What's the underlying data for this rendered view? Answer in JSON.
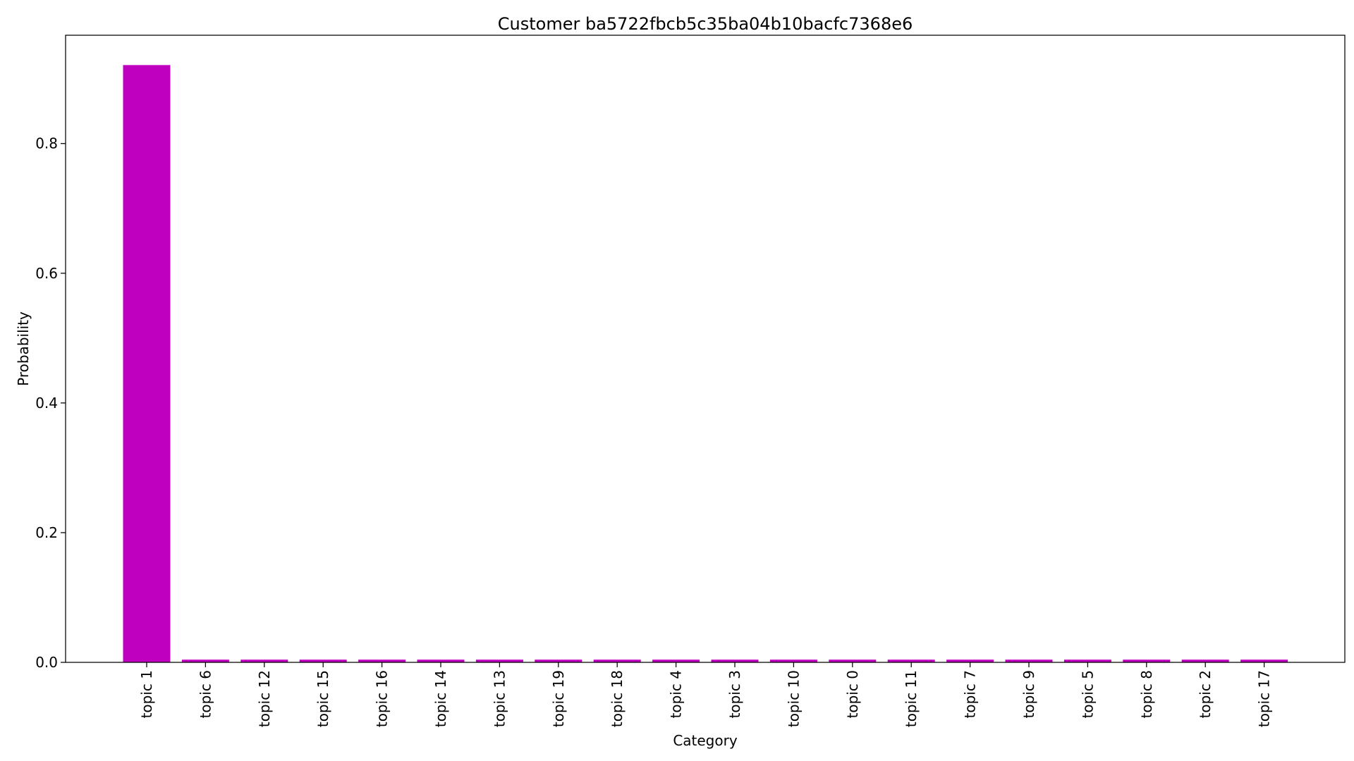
{
  "chart_data": {
    "type": "bar",
    "title": "Customer ba5722fbcb5c35ba04b10bacfc7368e6",
    "xlabel": "Category",
    "ylabel": "Probability",
    "categories": [
      "topic 1",
      "topic 6",
      "topic 12",
      "topic 15",
      "topic 16",
      "topic 14",
      "topic 13",
      "topic 19",
      "topic 18",
      "topic 4",
      "topic 3",
      "topic 10",
      "topic 0",
      "topic 11",
      "topic 7",
      "topic 9",
      "topic 5",
      "topic 8",
      "topic 2",
      "topic 17"
    ],
    "values": [
      0.921,
      0.0042,
      0.0042,
      0.0042,
      0.0042,
      0.0042,
      0.0042,
      0.0042,
      0.0042,
      0.0042,
      0.0042,
      0.0042,
      0.0042,
      0.0042,
      0.0042,
      0.0042,
      0.0042,
      0.0042,
      0.0042,
      0.0042
    ],
    "ylim": [
      0,
      0.967
    ],
    "yticks": [
      0.0,
      0.2,
      0.4,
      0.6,
      0.8
    ],
    "ytick_labels": [
      "0.0",
      "0.2",
      "0.4",
      "0.6",
      "0.8"
    ],
    "bar_color": "#bf00bf",
    "grid": false,
    "legend": "none"
  }
}
